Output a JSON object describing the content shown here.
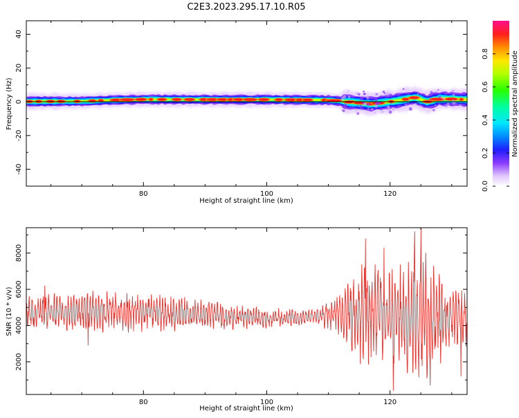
{
  "figure_title": "C2E3.2023.295.17.10.R05",
  "chart_data": [
    {
      "type": "heatmap",
      "xlabel": "Height of straight line (km)",
      "ylabel": "Frequency (Hz)",
      "xlim": [
        61,
        132.5
      ],
      "ylim": [
        -50,
        48
      ],
      "x_ticks": [
        80,
        100,
        120
      ],
      "y_ticks": [
        40,
        20,
        0,
        -20,
        -40
      ],
      "x_tick_labels": [
        "80",
        "100",
        "120"
      ],
      "y_tick_labels": [
        "40",
        "20",
        "0",
        "-20",
        "-40"
      ],
      "colorbar": {
        "label": "Normalized spectral amplitude",
        "range": [
          0,
          1
        ],
        "ticks": [
          0.0,
          0.2,
          0.4,
          0.6,
          0.8
        ],
        "tick_labels": [
          "0.0",
          "0.2",
          "0.4",
          "0.6",
          "0.8"
        ]
      },
      "band_center_hz": [
        {
          "x": 61,
          "y": 0.2
        },
        {
          "x": 70,
          "y": 0.3
        },
        {
          "x": 75,
          "y": 1.0
        },
        {
          "x": 80,
          "y": 1.4
        },
        {
          "x": 90,
          "y": 1.3
        },
        {
          "x": 100,
          "y": 1.3
        },
        {
          "x": 110,
          "y": 1.0
        },
        {
          "x": 113,
          "y": 0.0
        },
        {
          "x": 117,
          "y": -1.3
        },
        {
          "x": 121,
          "y": 0.5
        },
        {
          "x": 124,
          "y": 2.5
        },
        {
          "x": 126,
          "y": 0.0
        },
        {
          "x": 128,
          "y": 1.8
        },
        {
          "x": 132.5,
          "y": 1.3
        }
      ],
      "reference_line_hz": 0
    },
    {
      "type": "line",
      "xlabel": "Height of straight line (km)",
      "ylabel": "SNR (10 * v/v)",
      "xlim": [
        61,
        132.5
      ],
      "ylim": [
        200,
        9400
      ],
      "x_ticks": [
        80,
        100,
        120
      ],
      "y_ticks": [
        2000,
        4000,
        6000,
        8000
      ],
      "x_tick_labels": [
        "80",
        "100",
        "120"
      ],
      "y_tick_labels": [
        "2000",
        "4000",
        "6000",
        "8000"
      ],
      "series": [
        {
          "color": "#e8302a",
          "envelope": [
            {
              "x": 61,
              "mean": 4700,
              "amp": 900
            },
            {
              "x": 75,
              "mean": 4800,
              "amp": 1100
            },
            {
              "x": 90,
              "mean": 4600,
              "amp": 800
            },
            {
              "x": 100,
              "mean": 4400,
              "amp": 500
            },
            {
              "x": 108,
              "mean": 4500,
              "amp": 400
            },
            {
              "x": 112,
              "mean": 4700,
              "amp": 1200
            },
            {
              "x": 115,
              "mean": 4700,
              "amp": 2500
            },
            {
              "x": 118,
              "mean": 4600,
              "amp": 2700
            },
            {
              "x": 121,
              "mean": 4500,
              "amp": 2400
            },
            {
              "x": 124,
              "mean": 4600,
              "amp": 3600
            },
            {
              "x": 126,
              "mean": 4500,
              "amp": 3300
            },
            {
              "x": 129,
              "mean": 4400,
              "amp": 1800
            },
            {
              "x": 132.5,
              "mean": 4400,
              "amp": 1400
            }
          ],
          "peaks": [
            {
              "x": 64,
              "y": 6200
            },
            {
              "x": 71,
              "y": 2900
            },
            {
              "x": 116,
              "y": 8800
            },
            {
              "x": 119,
              "y": 8300
            },
            {
              "x": 120.5,
              "y": 400
            },
            {
              "x": 124,
              "y": 9200
            },
            {
              "x": 125,
              "y": 9400
            },
            {
              "x": 126.5,
              "y": 700
            },
            {
              "x": 131.5,
              "y": 1200
            }
          ]
        }
      ]
    }
  ]
}
